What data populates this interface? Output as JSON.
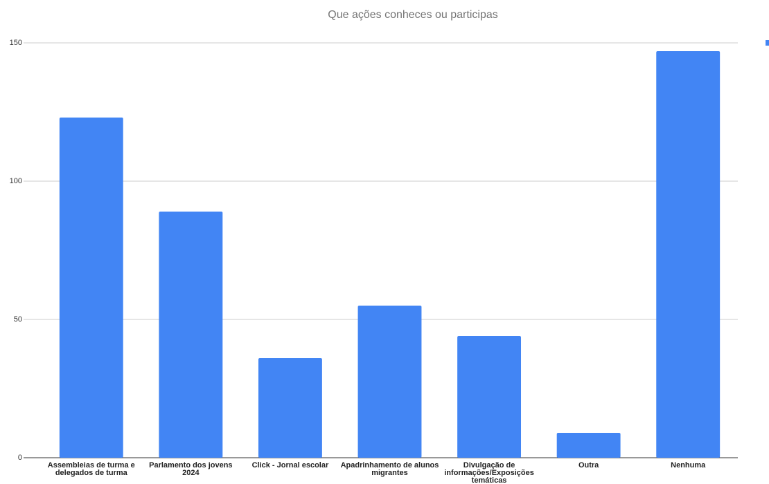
{
  "chart_data": {
    "type": "bar",
    "title": "Que ações conheces ou participas",
    "categories": [
      "Assembleias de turma e delegados de turma",
      "Parlamento dos jovens 2024",
      "Click - Jornal escolar",
      "Apadrinhamento de alunos migrantes",
      "Divulgação de informações/Exposições temáticas",
      "Outra",
      "Nenhuma"
    ],
    "values": [
      123,
      89,
      36,
      55,
      44,
      9,
      147
    ],
    "color": "#4285f4",
    "ylim": [
      0,
      150
    ],
    "yticks": [
      0,
      50,
      100,
      150
    ],
    "grid": true
  }
}
